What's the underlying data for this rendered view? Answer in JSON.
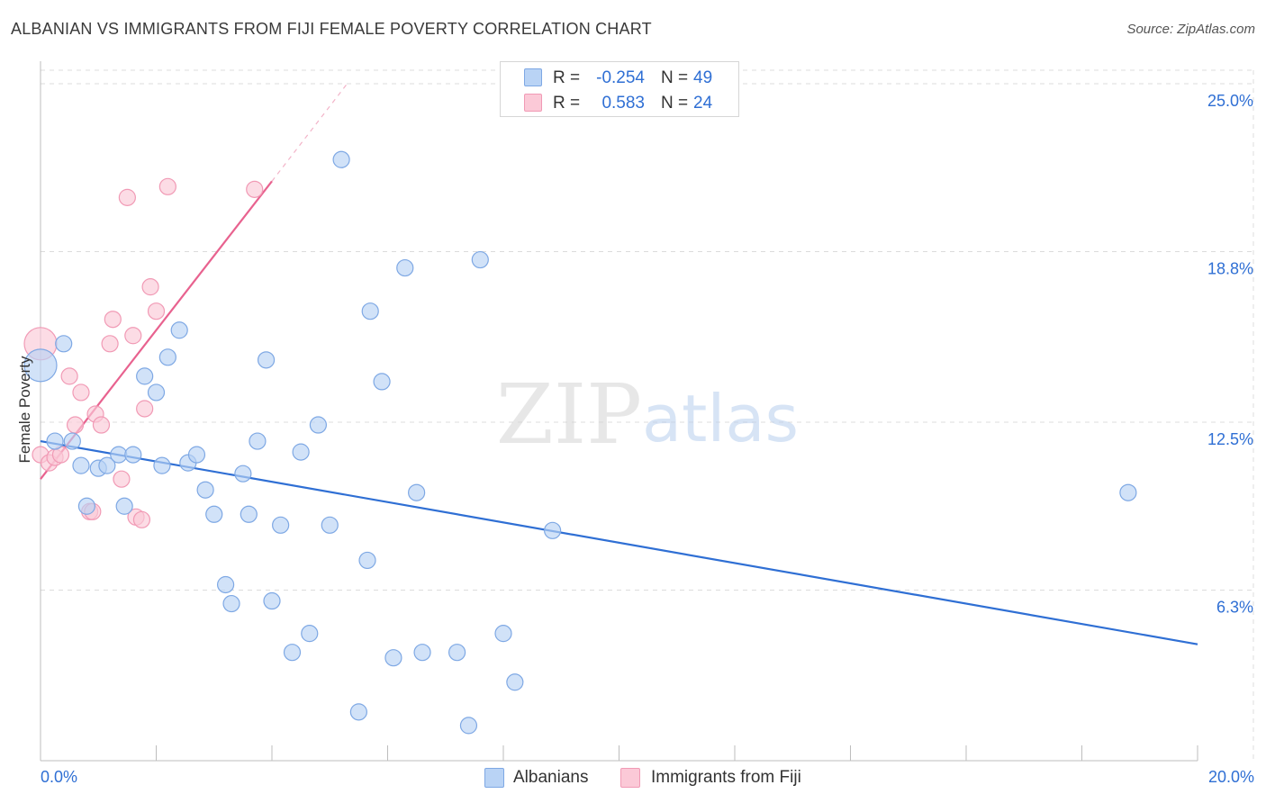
{
  "header": {
    "title": "ALBANIAN VS IMMIGRANTS FROM FIJI FEMALE POVERTY CORRELATION CHART",
    "source": "Source: ZipAtlas.com"
  },
  "watermark": {
    "zip": "ZIP",
    "atlas": "atlas"
  },
  "legend_top": {
    "rows": [
      {
        "r_label": "R =",
        "r_value": "-0.254",
        "n_label": "N =",
        "n_value": "49"
      },
      {
        "r_label": "R =",
        "r_value": "0.583",
        "n_label": "N =",
        "n_value": "24"
      }
    ]
  },
  "legend_bottom": {
    "items": [
      "Albanians",
      "Immigrants from Fiji"
    ]
  },
  "colors": {
    "blue_fill": "#b9d3f5",
    "blue_stroke": "#7ea8e4",
    "blue_line": "#2f6fd4",
    "pink_fill": "#fbc9d7",
    "pink_stroke": "#f19ab5",
    "pink_line": "#e8628f",
    "grid": "#dcdcdc",
    "tick_label": "#2f6fd4"
  },
  "chart_data": {
    "type": "scatter",
    "title": "ALBANIAN VS IMMIGRANTS FROM FIJI FEMALE POVERTY CORRELATION CHART",
    "xlabel": "",
    "ylabel": "Female Poverty",
    "xlim": [
      0,
      20
    ],
    "ylim": [
      0,
      25.5
    ],
    "x_tick_labels": [
      "0.0%",
      "20.0%"
    ],
    "y_ticks": [
      6.3,
      12.5,
      18.8,
      25.0
    ],
    "y_tick_labels": [
      "6.3%",
      "12.5%",
      "18.8%",
      "25.0%"
    ],
    "grid": true,
    "legend_position": "top-center",
    "series": [
      {
        "name": "Albanians",
        "color": "blue",
        "regression": {
          "x0": 0.0,
          "y0": 11.8,
          "x1": 20.0,
          "y1": 4.3
        },
        "points": [
          [
            0.0,
            14.6
          ],
          [
            0.4,
            15.4
          ],
          [
            0.25,
            11.8
          ],
          [
            0.55,
            11.8
          ],
          [
            0.7,
            10.9
          ],
          [
            0.8,
            9.4
          ],
          [
            1.0,
            10.8
          ],
          [
            1.15,
            10.9
          ],
          [
            1.35,
            11.3
          ],
          [
            1.45,
            9.4
          ],
          [
            1.6,
            11.3
          ],
          [
            1.8,
            14.2
          ],
          [
            2.0,
            13.6
          ],
          [
            2.1,
            10.9
          ],
          [
            2.2,
            14.9
          ],
          [
            2.4,
            15.9
          ],
          [
            2.55,
            11.0
          ],
          [
            2.7,
            11.3
          ],
          [
            2.85,
            10.0
          ],
          [
            3.0,
            9.1
          ],
          [
            3.2,
            6.5
          ],
          [
            3.3,
            5.8
          ],
          [
            3.5,
            10.6
          ],
          [
            3.6,
            9.1
          ],
          [
            3.75,
            11.8
          ],
          [
            3.9,
            14.8
          ],
          [
            4.0,
            5.9
          ],
          [
            4.15,
            8.7
          ],
          [
            4.35,
            4.0
          ],
          [
            4.5,
            11.4
          ],
          [
            4.65,
            4.7
          ],
          [
            4.8,
            12.4
          ],
          [
            5.0,
            8.7
          ],
          [
            5.2,
            22.2
          ],
          [
            5.5,
            1.8
          ],
          [
            5.65,
            7.4
          ],
          [
            5.7,
            16.6
          ],
          [
            5.9,
            14.0
          ],
          [
            6.1,
            3.8
          ],
          [
            6.3,
            18.2
          ],
          [
            6.5,
            9.9
          ],
          [
            6.6,
            4.0
          ],
          [
            7.2,
            4.0
          ],
          [
            7.4,
            1.3
          ],
          [
            7.6,
            18.5
          ],
          [
            8.0,
            4.7
          ],
          [
            8.2,
            2.9
          ],
          [
            8.85,
            8.5
          ],
          [
            18.8,
            9.9
          ]
        ]
      },
      {
        "name": "Immigrants from Fiji",
        "color": "pink",
        "regression": {
          "x0": 0.0,
          "y0": 10.4,
          "x1": 4.0,
          "y1": 21.4,
          "dash_to": {
            "x": 5.3,
            "y": 25.0
          }
        },
        "points": [
          [
            0.0,
            15.4
          ],
          [
            0.0,
            11.3
          ],
          [
            0.15,
            11.0
          ],
          [
            0.25,
            11.2
          ],
          [
            0.35,
            11.3
          ],
          [
            0.5,
            14.2
          ],
          [
            0.6,
            12.4
          ],
          [
            0.7,
            13.6
          ],
          [
            0.85,
            9.2
          ],
          [
            0.9,
            9.2
          ],
          [
            0.95,
            12.8
          ],
          [
            1.05,
            12.4
          ],
          [
            1.2,
            15.4
          ],
          [
            1.25,
            16.3
          ],
          [
            1.4,
            10.4
          ],
          [
            1.5,
            20.8
          ],
          [
            1.6,
            15.7
          ],
          [
            1.65,
            9.0
          ],
          [
            1.75,
            8.9
          ],
          [
            1.8,
            13.0
          ],
          [
            1.9,
            17.5
          ],
          [
            2.0,
            16.6
          ],
          [
            2.2,
            21.2
          ],
          [
            3.7,
            21.1
          ]
        ]
      }
    ]
  }
}
